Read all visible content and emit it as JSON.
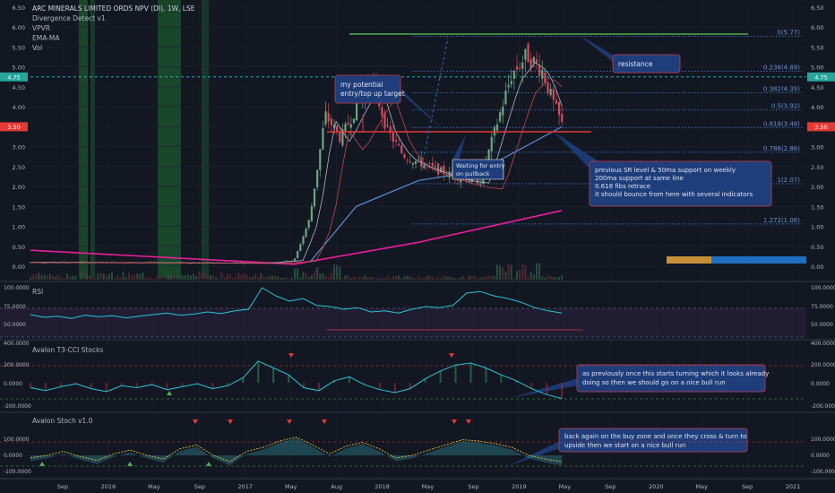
{
  "header": {
    "symbol_line": "ARC MINERALS LIMITED ORDS NPV (DI), 1W, LSE",
    "indicators": [
      "Divergence Detect v1",
      "VPVR",
      "EMA-MA",
      "Vol"
    ]
  },
  "colors": {
    "background": "#131722",
    "grid": "#1e2230",
    "candle_up": "#6ba583",
    "candle_down": "#d9495a",
    "fib_line": "#3a76c8",
    "fib_text": "#6f8fc9",
    "resistance": "#4caf50",
    "support": "#e53935",
    "ma_pink": "#e91e9e",
    "ma_blue": "#5a8fd6",
    "ma_red": "#c2494d",
    "ma_white": "#b0b6c8",
    "rsi": "#26c6da",
    "annotation_bg": "#1f3d7a",
    "annotation_border": "#9c3b55",
    "green_zone": "#1f6b32",
    "price_badge": "#e53935",
    "cyan_badge": "#26a69a"
  },
  "price_axis": {
    "left_ticks": [
      "6.50",
      "6.00",
      "5.50",
      "5.00",
      "4.50",
      "4.00",
      "3.50",
      "3.00",
      "2.50",
      "2.00",
      "1.50",
      "1.00",
      "0.50",
      "0.00"
    ],
    "right_ticks": [
      "6.50",
      "6.00",
      "5.50",
      "5.00",
      "4.50",
      "4.00",
      "3.50",
      "3.00",
      "2.50",
      "2.00",
      "1.50",
      "1.00",
      "0.50",
      "0.00"
    ],
    "badges": [
      {
        "label": "3.50",
        "price": 3.5,
        "color": "price_badge"
      },
      {
        "label": "4.75",
        "price": 4.75,
        "color": "cyan_badge"
      }
    ]
  },
  "time_axis": [
    "Sep",
    "2016",
    "May",
    "Sep",
    "2017",
    "May",
    "Aug",
    "2018",
    "May",
    "Sep",
    "2019",
    "May",
    "Sep",
    "2020",
    "May",
    "Sep",
    "2021"
  ],
  "fib_levels": [
    {
      "label": "0(5.77)",
      "price": 5.77
    },
    {
      "label": "0.236(4.89)",
      "price": 4.89
    },
    {
      "label": "0.382(4.35)",
      "price": 4.35
    },
    {
      "label": "0.5(3.92)",
      "price": 3.92
    },
    {
      "label": "0.618(3.48)",
      "price": 3.48
    },
    {
      "label": "0.786(2.86)",
      "price": 2.86
    },
    {
      "label": "1(2.07)",
      "price": 2.07
    },
    {
      "label": "1.272(1.06)",
      "price": 1.06
    }
  ],
  "annotations": {
    "resistance": "resistance",
    "entry_target": [
      "my potential",
      "entry/top up target"
    ],
    "waiting": [
      "Waiting for entry",
      "on pullback"
    ],
    "support_note": [
      "previous SR level & 50ma support on weekly",
      "200ma support at same line",
      "0.618 fibs retrace",
      "it should bounce from here with several indicators"
    ],
    "cci_note": [
      "as previously once this starts turning which it looks already",
      "doing so then we should go on a nice bull run"
    ],
    "stoch_note": [
      "back again on the buy zone and once they cross & turn to",
      "upside then we start on a nice bull run"
    ]
  },
  "panes": {
    "rsi": {
      "title": "RSI",
      "ticks": [
        "100.0000",
        "75.0000",
        "50.0000"
      ],
      "upper_band": 70,
      "lower_band": 30
    },
    "cci": {
      "title": "Avalon T3-CCI Stocks",
      "ticks": [
        "400.0000",
        "200.0000",
        "0.0000",
        "-200.0000"
      ]
    },
    "stoch": {
      "title": "Avalon Stoch v1.0",
      "ticks": [
        "100.0000",
        "0.0000",
        "-100.0000"
      ]
    }
  },
  "chart_data": {
    "type": "candlestick",
    "title": "ARC MINERALS LIMITED ORDS NPV (DI), 1W, LSE",
    "ylim": [
      0,
      6.5
    ],
    "key_levels": {
      "resistance": 5.77,
      "support": 3.5
    },
    "price_path": [
      {
        "x": 0.0,
        "price": 0.1
      },
      {
        "x": 0.3,
        "price": 0.08
      },
      {
        "x": 0.34,
        "price": 0.15
      },
      {
        "x": 0.36,
        "price": 1.2
      },
      {
        "x": 0.38,
        "price": 3.8
      },
      {
        "x": 0.4,
        "price": 3.2
      },
      {
        "x": 0.42,
        "price": 4.0
      },
      {
        "x": 0.44,
        "price": 4.7
      },
      {
        "x": 0.46,
        "price": 3.4
      },
      {
        "x": 0.48,
        "price": 2.8
      },
      {
        "x": 0.5,
        "price": 2.6
      },
      {
        "x": 0.52,
        "price": 2.45
      },
      {
        "x": 0.54,
        "price": 2.3
      },
      {
        "x": 0.56,
        "price": 2.2
      },
      {
        "x": 0.58,
        "price": 2.15
      },
      {
        "x": 0.6,
        "price": 3.5
      },
      {
        "x": 0.62,
        "price": 4.8
      },
      {
        "x": 0.64,
        "price": 5.3
      },
      {
        "x": 0.66,
        "price": 4.9
      },
      {
        "x": 0.67,
        "price": 4.3
      },
      {
        "x": 0.685,
        "price": 3.55
      }
    ],
    "ma_pink": [
      {
        "x": 0.0,
        "price": 0.4
      },
      {
        "x": 0.34,
        "price": 0.05
      },
      {
        "x": 0.5,
        "price": 0.6
      },
      {
        "x": 0.685,
        "price": 1.4
      }
    ],
    "ma_blue": [
      {
        "x": 0.36,
        "price": 0.1
      },
      {
        "x": 0.42,
        "price": 1.5
      },
      {
        "x": 0.5,
        "price": 2.15
      },
      {
        "x": 0.58,
        "price": 2.4
      },
      {
        "x": 0.685,
        "price": 3.5
      }
    ],
    "rsi_series": [
      45,
      40,
      42,
      38,
      44,
      41,
      43,
      39,
      42,
      45,
      48,
      44,
      46,
      50,
      47,
      52,
      55,
      95,
      80,
      70,
      75,
      62,
      60,
      55,
      58,
      50,
      52,
      48,
      55,
      60,
      58,
      62,
      85,
      88,
      80,
      75,
      68,
      58,
      52,
      48
    ],
    "cci_series": [
      -50,
      -80,
      -40,
      -10,
      -60,
      -90,
      -30,
      -50,
      -20,
      -70,
      -40,
      -10,
      -60,
      -30,
      50,
      220,
      150,
      80,
      -50,
      -80,
      20,
      60,
      -20,
      -70,
      -100,
      -60,
      40,
      120,
      180,
      200,
      150,
      80,
      20,
      -60,
      -120,
      -160
    ],
    "stoch_series": [
      -40,
      -20,
      10,
      -30,
      -60,
      -10,
      20,
      -20,
      -50,
      30,
      60,
      -20,
      -70,
      10,
      40,
      90,
      120,
      60,
      -10,
      50,
      80,
      30,
      -40,
      -20,
      20,
      60,
      100,
      90,
      70,
      40,
      -20,
      -50,
      -70
    ]
  }
}
